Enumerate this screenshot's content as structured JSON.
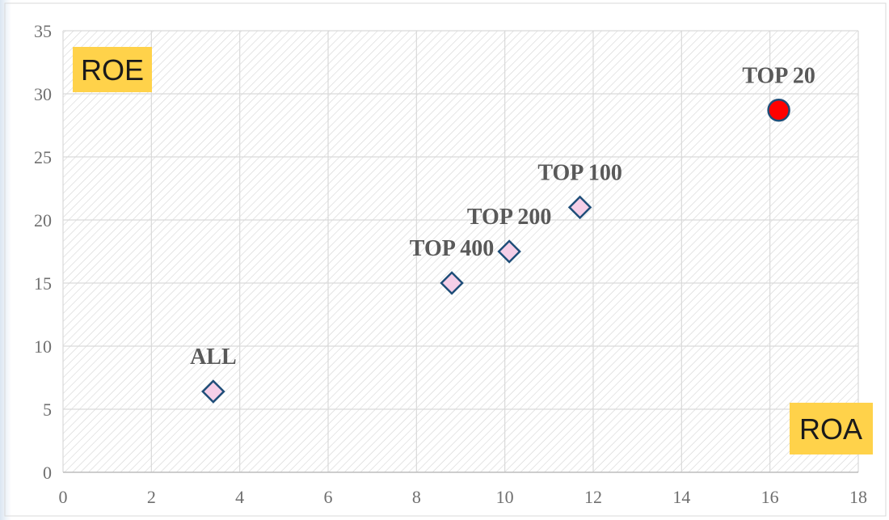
{
  "chart_data": {
    "type": "scatter",
    "title": "",
    "xlabel": "ROA",
    "ylabel": "ROE",
    "xlim": [
      0,
      18
    ],
    "ylim": [
      0,
      35
    ],
    "x_ticks": [
      0,
      2,
      4,
      6,
      8,
      10,
      12,
      14,
      16,
      18
    ],
    "y_ticks": [
      0,
      5,
      10,
      15,
      20,
      25,
      30,
      35
    ],
    "grid": true,
    "legend": "none",
    "points": [
      {
        "label": "ALL",
        "x": 3.4,
        "y": 6.4,
        "marker": "diamond",
        "fill": "#f5cfe8",
        "stroke": "#1f4e79"
      },
      {
        "label": "TOP 400",
        "x": 8.8,
        "y": 15.0,
        "marker": "diamond",
        "fill": "#f5cfe8",
        "stroke": "#1f4e79"
      },
      {
        "label": "TOP 200",
        "x": 10.1,
        "y": 17.5,
        "marker": "diamond",
        "fill": "#f5cfe8",
        "stroke": "#1f4e79"
      },
      {
        "label": "TOP 100",
        "x": 11.7,
        "y": 21.0,
        "marker": "diamond",
        "fill": "#f5cfe8",
        "stroke": "#1f4e79"
      },
      {
        "label": "TOP 20",
        "x": 16.2,
        "y": 28.7,
        "marker": "circle",
        "fill": "#ff0000",
        "stroke": "#1f4e79"
      }
    ],
    "badge_color": "#ffd24a"
  }
}
